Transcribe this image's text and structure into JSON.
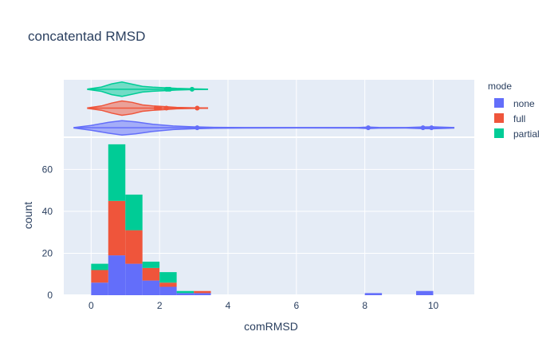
{
  "chart_data": {
    "type": "bar",
    "title": "concatentad RMSD",
    "xlabel": "comRMSD",
    "ylabel": "count",
    "xlim": [
      -0.8,
      11.2
    ],
    "ylim": [
      0,
      75
    ],
    "x_ticks": [
      0,
      2,
      4,
      6,
      8,
      10
    ],
    "y_ticks": [
      0,
      20,
      40,
      60
    ],
    "bin_width": 0.5,
    "barmode": "stack",
    "legend": {
      "title": "mode",
      "placement": "right"
    },
    "series": [
      {
        "name": "none",
        "color": "#636efa",
        "bins": [
          {
            "x0": 0.0,
            "x1": 0.5,
            "count": 6
          },
          {
            "x0": 0.5,
            "x1": 1.0,
            "count": 19
          },
          {
            "x0": 1.0,
            "x1": 1.5,
            "count": 15
          },
          {
            "x0": 1.5,
            "x1": 2.0,
            "count": 7
          },
          {
            "x0": 2.0,
            "x1": 2.5,
            "count": 4
          },
          {
            "x0": 2.5,
            "x1": 3.0,
            "count": 1
          },
          {
            "x0": 3.0,
            "x1": 3.5,
            "count": 1
          },
          {
            "x0": 8.0,
            "x1": 8.5,
            "count": 1
          },
          {
            "x0": 9.5,
            "x1": 10.0,
            "count": 2
          }
        ],
        "violin": {
          "range": [
            -0.5,
            10.6
          ],
          "kde": [
            [
              -0.5,
              0.02
            ],
            [
              0,
              0.2
            ],
            [
              0.5,
              0.45
            ],
            [
              0.9,
              0.6
            ],
            [
              1.3,
              0.5
            ],
            [
              1.8,
              0.3
            ],
            [
              2.4,
              0.15
            ],
            [
              3.0,
              0.08
            ],
            [
              3.6,
              0.04
            ],
            [
              4.5,
              0.02
            ],
            [
              6,
              0.015
            ],
            [
              7.8,
              0.02
            ],
            [
              8.1,
              0.06
            ],
            [
              8.4,
              0.03
            ],
            [
              9.2,
              0.02
            ],
            [
              9.7,
              0.07
            ],
            [
              10.0,
              0.08
            ],
            [
              10.6,
              0.02
            ]
          ],
          "outliers": [
            3.1,
            8.1,
            9.7,
            9.95
          ]
        }
      },
      {
        "name": "full",
        "color": "#ef553b",
        "bins": [
          {
            "x0": 0.0,
            "x1": 0.5,
            "count": 6
          },
          {
            "x0": 0.5,
            "x1": 1.0,
            "count": 26
          },
          {
            "x0": 1.0,
            "x1": 1.5,
            "count": 16
          },
          {
            "x0": 1.5,
            "x1": 2.0,
            "count": 6
          },
          {
            "x0": 2.0,
            "x1": 2.5,
            "count": 2
          },
          {
            "x0": 2.5,
            "x1": 3.0,
            "count": 0
          },
          {
            "x0": 3.0,
            "x1": 3.5,
            "count": 1
          }
        ],
        "violin": {
          "range": [
            -0.1,
            3.4
          ],
          "kde": [
            [
              -0.1,
              0.03
            ],
            [
              0.3,
              0.3
            ],
            [
              0.6,
              0.7
            ],
            [
              0.9,
              1.0
            ],
            [
              1.2,
              0.8
            ],
            [
              1.5,
              0.45
            ],
            [
              1.8,
              0.3
            ],
            [
              2.1,
              0.22
            ],
            [
              2.5,
              0.1
            ],
            [
              3.0,
              0.05
            ],
            [
              3.4,
              0.02
            ]
          ],
          "outliers": [
            1.9,
            2.0,
            2.2,
            3.1
          ]
        }
      },
      {
        "name": "partial",
        "color": "#00cc96",
        "bins": [
          {
            "x0": 0.0,
            "x1": 0.5,
            "count": 3
          },
          {
            "x0": 0.5,
            "x1": 1.0,
            "count": 27
          },
          {
            "x0": 1.0,
            "x1": 1.5,
            "count": 17
          },
          {
            "x0": 1.5,
            "x1": 2.0,
            "count": 3
          },
          {
            "x0": 2.0,
            "x1": 2.5,
            "count": 5
          },
          {
            "x0": 2.5,
            "x1": 3.0,
            "count": 1
          }
        ],
        "violin": {
          "range": [
            -0.1,
            3.4
          ],
          "kde": [
            [
              -0.1,
              0.03
            ],
            [
              0.3,
              0.3
            ],
            [
              0.6,
              0.75
            ],
            [
              0.9,
              1.0
            ],
            [
              1.2,
              0.7
            ],
            [
              1.5,
              0.4
            ],
            [
              1.8,
              0.28
            ],
            [
              2.1,
              0.22
            ],
            [
              2.5,
              0.12
            ],
            [
              3.0,
              0.05
            ],
            [
              3.4,
              0.02
            ]
          ],
          "outliers": [
            2.2,
            2.25,
            2.3,
            2.95
          ]
        }
      }
    ]
  }
}
